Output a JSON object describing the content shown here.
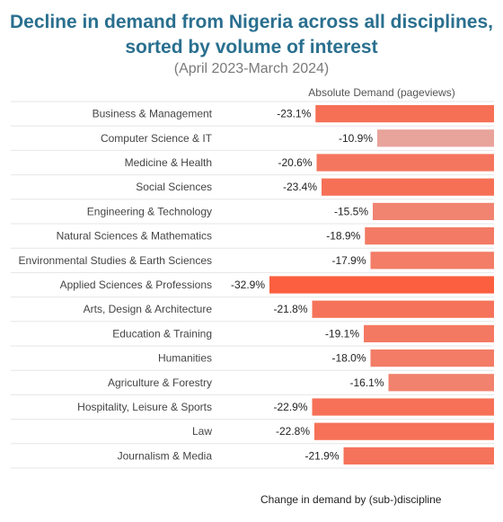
{
  "header": {
    "title_line1": "Decline in demand from Nigeria across all disciplines,",
    "title_line2": "sorted by volume of interest",
    "subtitle": "(April 2023-March 2024)"
  },
  "chart_data": {
    "type": "bar",
    "column_header": "Absolute Demand (pageviews)",
    "footer": "Change in demand by (sub-)discipline",
    "value_format": "percent",
    "color_scale": [
      "#e8a39b",
      "#fb5f3f"
    ],
    "categories": [
      {
        "label": "Business & Management",
        "change": -23.1,
        "label_text": "-23.1%",
        "bar_start": 0.205
      },
      {
        "label": "Computer Science & IT",
        "change": -10.9,
        "label_text": "-10.9%",
        "bar_start": 0.48
      },
      {
        "label": "Medicine & Health",
        "change": -20.6,
        "label_text": "-20.6%",
        "bar_start": 0.21
      },
      {
        "label": "Social Sciences",
        "change": -23.4,
        "label_text": "-23.4%",
        "bar_start": 0.232
      },
      {
        "label": "Engineering & Technology",
        "change": -15.5,
        "label_text": "-15.5%",
        "bar_start": 0.46
      },
      {
        "label": "Natural Sciences & Mathematics",
        "change": -18.9,
        "label_text": "-18.9%",
        "bar_start": 0.425
      },
      {
        "label": "Environmental Studies & Earth Sciences",
        "change": -17.9,
        "label_text": "-17.9%",
        "bar_start": 0.45
      },
      {
        "label": "Applied Sciences & Professions",
        "change": -32.9,
        "label_text": "-32.9%",
        "bar_start": 0.0
      },
      {
        "label": "Arts, Design & Architecture",
        "change": -21.8,
        "label_text": "-21.8%",
        "bar_start": 0.19
      },
      {
        "label": "Education & Training",
        "change": -19.1,
        "label_text": "-19.1%",
        "bar_start": 0.42
      },
      {
        "label": "Humanities",
        "change": -18.0,
        "label_text": "-18.0%",
        "bar_start": 0.45
      },
      {
        "label": "Agriculture & Forestry",
        "change": -16.1,
        "label_text": "-16.1%",
        "bar_start": 0.53
      },
      {
        "label": "Hospitality, Leisure & Sports",
        "change": -22.9,
        "label_text": "-22.9%",
        "bar_start": 0.19
      },
      {
        "label": "Law",
        "change": -22.8,
        "label_text": "-22.8%",
        "bar_start": 0.2
      },
      {
        "label": "Journalism & Media",
        "change": -21.9,
        "label_text": "-21.9%",
        "bar_start": 0.33
      }
    ]
  }
}
